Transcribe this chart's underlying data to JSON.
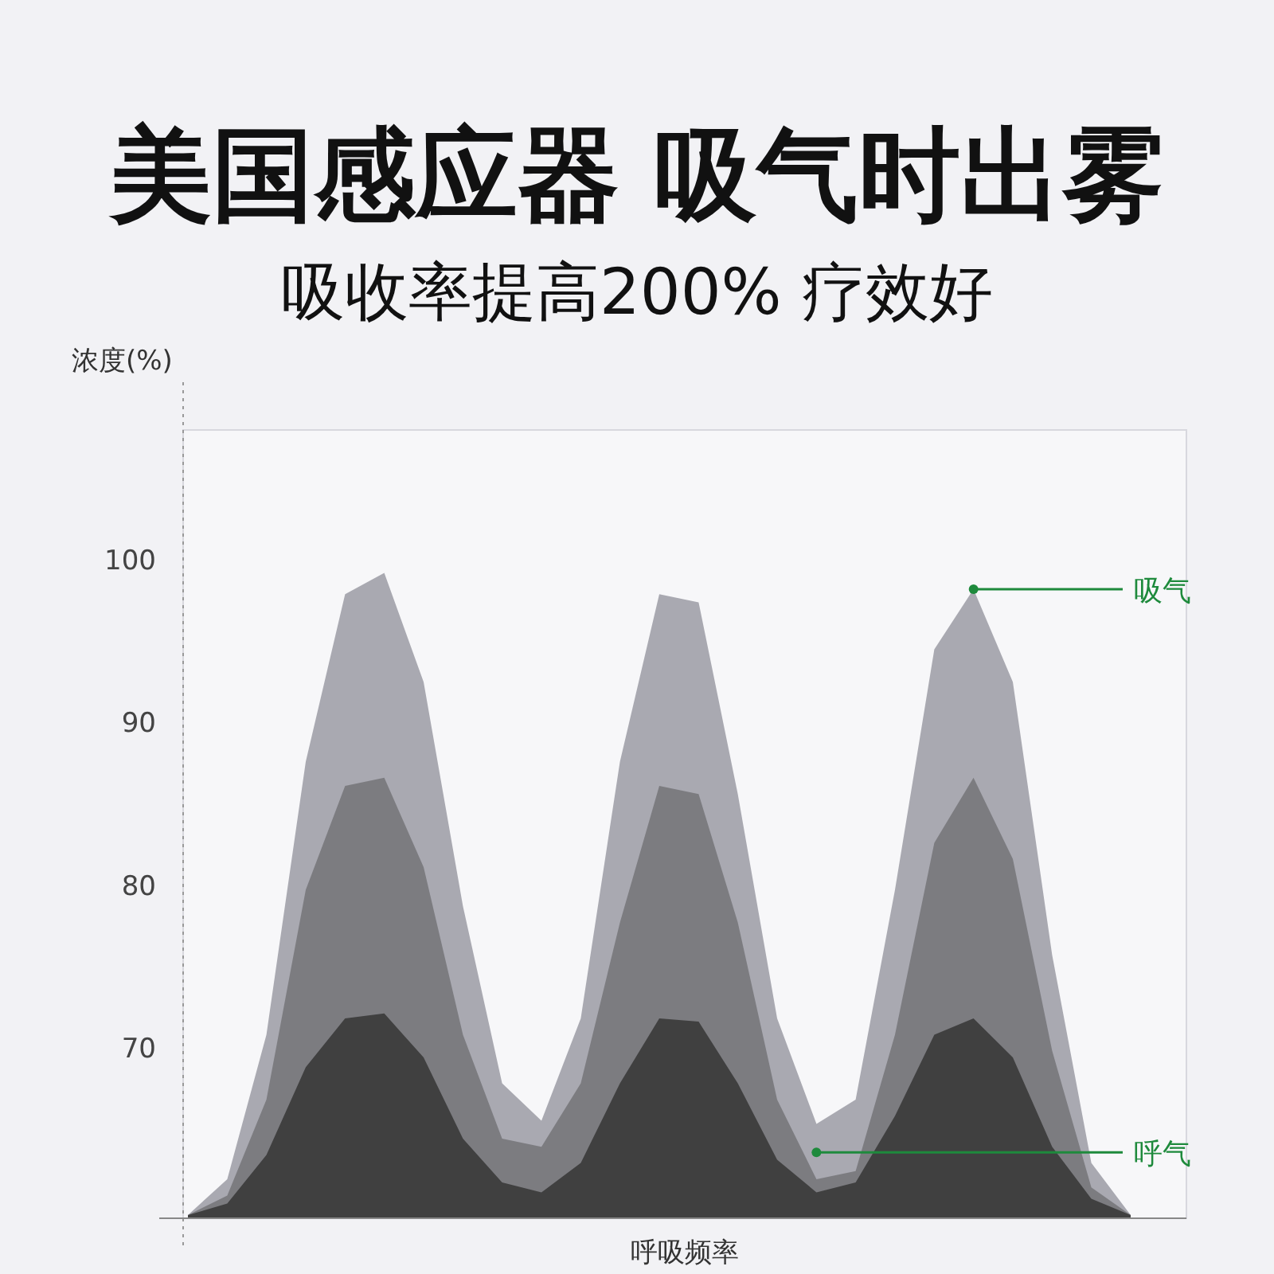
{
  "chart_data": {
    "type": "area",
    "title": "美国感应器 吸气时出雾",
    "subtitle": "吸收率提高200% 疗效好",
    "ylabel": "浓度(%)",
    "xlabel": "呼吸频率",
    "categories": [
      null,
      null,
      null,
      null,
      null,
      null,
      null,
      null,
      null,
      null,
      null,
      null,
      null,
      null,
      null,
      null,
      null,
      null,
      null,
      null,
      null,
      null,
      null,
      null,
      null
    ],
    "series": [
      {
        "color": "#a9a9b1",
        "values": [
          59.7,
          61.9,
          70.8,
          87.6,
          97.9,
          99.2,
          92.5,
          78.7,
          67.8,
          65.5,
          71.8,
          87.6,
          97.9,
          97.4,
          85.6,
          71.8,
          65.3,
          66.8,
          79.7,
          94.5,
          98.2,
          92.5,
          75.7,
          62.9,
          59.7
        ]
      },
      {
        "color": "#7c7c80",
        "values": [
          59.7,
          60.9,
          66.8,
          79.7,
          86.1,
          86.6,
          81.1,
          70.8,
          64.4,
          63.9,
          67.8,
          77.7,
          86.1,
          85.6,
          77.7,
          66.8,
          61.9,
          62.4,
          70.8,
          82.6,
          86.6,
          81.6,
          69.8,
          61.4,
          59.7
        ]
      },
      {
        "color": "#404040",
        "values": [
          59.7,
          60.4,
          63.4,
          68.8,
          71.8,
          72.1,
          69.4,
          64.4,
          61.7,
          61.1,
          62.9,
          67.8,
          71.8,
          71.6,
          67.8,
          63.1,
          61.1,
          61.7,
          65.8,
          70.8,
          71.8,
          69.4,
          63.9,
          60.7,
          59.7
        ]
      }
    ],
    "ylim": [
      59.5,
      108
    ],
    "yticks": [
      70,
      80,
      90,
      100
    ],
    "annotations": [
      "吸气",
      "呼气"
    ]
  }
}
